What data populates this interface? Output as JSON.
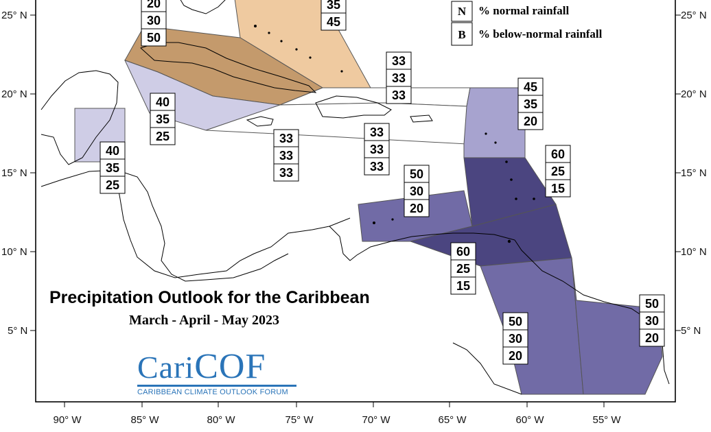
{
  "map": {
    "title": "Precipitation Outlook for the Caribbean",
    "subtitle": "March - April - May 2023",
    "logo": {
      "wordmark_part1": "Cari",
      "wordmark_part2": "COF",
      "tagline": "CARIBBEAN CLIMATE OUTLOOK FORUM"
    },
    "legend": [
      {
        "key": "N",
        "text": "% normal rainfall"
      },
      {
        "key": "B",
        "text": "% below-normal rainfall"
      }
    ],
    "lat_labels": [
      "25° N",
      "20° N",
      "15° N",
      "10° N",
      "5° N"
    ],
    "lon_labels": [
      "90° W",
      "85° W",
      "80° W",
      "75° W",
      "70° W",
      "65° W",
      "60° W",
      "55° W"
    ],
    "colors": {
      "background": "#ffffff",
      "cat_33": "#ffffff",
      "cat_40b": "#cfcde6",
      "cat_45b": "#a7a3cf",
      "cat_50b": "#716ba6",
      "cat_60b": "#4b4580",
      "cat_45a": "#efcaa0",
      "cat_50a": "#c49a6c"
    },
    "regions": [
      {
        "id": "bahamas",
        "values": [
          "35",
          "45"
        ]
      },
      {
        "id": "cuba",
        "values": [
          "20",
          "30",
          "50"
        ]
      },
      {
        "id": "nw-caribbean-sea",
        "values": [
          "40",
          "35",
          "25"
        ]
      },
      {
        "id": "belize",
        "values": [
          "40",
          "35",
          "25"
        ]
      },
      {
        "id": "turks-caicos",
        "values": [
          "33",
          "33",
          "33"
        ]
      },
      {
        "id": "central-caribbean",
        "values": [
          "33",
          "33",
          "33"
        ]
      },
      {
        "id": "hispaniola-pr",
        "values": [
          "33",
          "33",
          "33"
        ]
      },
      {
        "id": "leeward-islands",
        "values": [
          "45",
          "35",
          "20"
        ]
      },
      {
        "id": "windward-islands",
        "values": [
          "60",
          "25",
          "15"
        ]
      },
      {
        "id": "abc-islands",
        "values": [
          "50",
          "30",
          "20"
        ]
      },
      {
        "id": "trinidad",
        "values": [
          "60",
          "25",
          "15"
        ]
      },
      {
        "id": "guyana",
        "values": [
          "50",
          "30",
          "20"
        ]
      },
      {
        "id": "suriname-fr-guiana",
        "values": [
          "50",
          "30",
          "20"
        ]
      }
    ]
  }
}
